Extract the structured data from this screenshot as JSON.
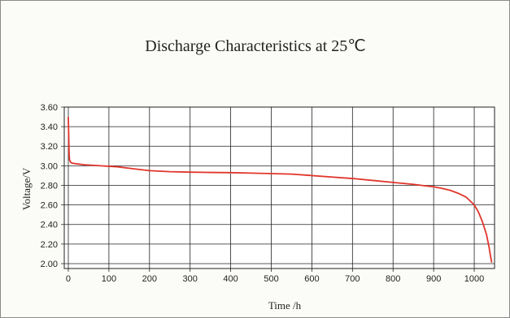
{
  "chart_data": {
    "type": "line",
    "title": "Discharge Characteristics at 25℃",
    "xlabel": "Time /h",
    "ylabel": "Voltage/V",
    "xlim": [
      -10,
      1050
    ],
    "ylim": [
      1.95,
      3.6
    ],
    "xticks": [
      0,
      100,
      200,
      300,
      400,
      500,
      600,
      700,
      800,
      900,
      1000
    ],
    "xtick_labels": [
      "0",
      "100",
      "200",
      "300",
      "400",
      "500",
      "600",
      "700",
      "800",
      "900",
      "1000"
    ],
    "yticks": [
      2.0,
      2.2,
      2.4,
      2.6,
      2.8,
      3.0,
      3.2,
      3.4,
      3.6
    ],
    "ytick_labels": [
      "2.00",
      "2.20",
      "2.40",
      "2.60",
      "2.80",
      "3.00",
      "3.20",
      "3.40",
      "3.60"
    ],
    "grid": true,
    "legend": "none",
    "series": [
      {
        "color": "#e0352b",
        "x": [
          0,
          1,
          2,
          3,
          5,
          8,
          12,
          20,
          40,
          80,
          120,
          160,
          200,
          250,
          300,
          350,
          400,
          450,
          500,
          550,
          600,
          650,
          700,
          750,
          800,
          850,
          880,
          900,
          920,
          940,
          960,
          980,
          1000,
          1010,
          1020,
          1030,
          1036,
          1040,
          1043
        ],
        "y": [
          3.5,
          3.3,
          3.12,
          3.06,
          3.04,
          3.03,
          3.025,
          3.02,
          3.01,
          3.0,
          2.99,
          2.97,
          2.95,
          2.94,
          2.935,
          2.932,
          2.93,
          2.925,
          2.92,
          2.915,
          2.9,
          2.885,
          2.87,
          2.85,
          2.83,
          2.81,
          2.795,
          2.785,
          2.77,
          2.75,
          2.72,
          2.68,
          2.6,
          2.53,
          2.43,
          2.3,
          2.18,
          2.08,
          2.01
        ]
      }
    ]
  }
}
